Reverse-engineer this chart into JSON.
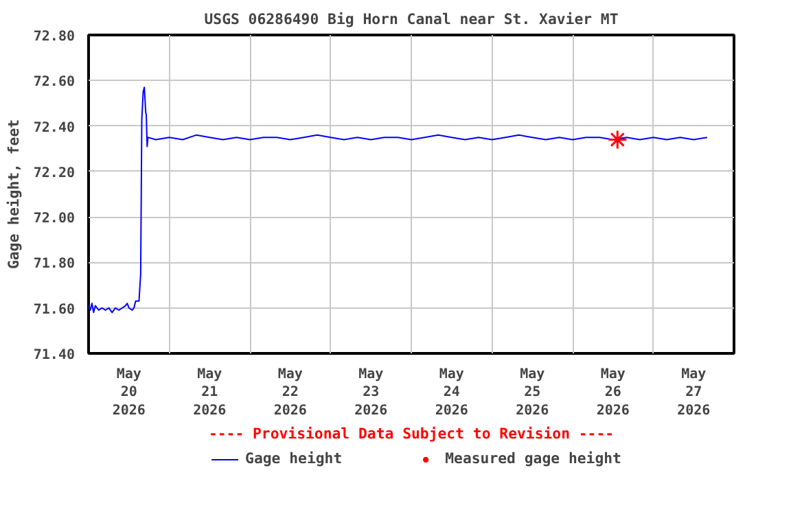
{
  "chart_data": {
    "type": "line",
    "title": "USGS 06286490 Big Horn Canal near St. Xavier MT",
    "ylabel": "Gage height, feet",
    "xlim": [
      "2026-05-20T00:00",
      "2026-05-28T00:00"
    ],
    "xticks": [
      {
        "value": "2026-05-20T12:00",
        "label": "May\n20\n2026"
      },
      {
        "value": "2026-05-21T00:00",
        "label": null
      },
      {
        "value": "2026-05-21T12:00",
        "label": "May\n21\n2026"
      },
      {
        "value": "2026-05-22T00:00",
        "label": null
      },
      {
        "value": "2026-05-22T12:00",
        "label": "May\n22\n2026"
      },
      {
        "value": "2026-05-23T00:00",
        "label": null
      },
      {
        "value": "2026-05-23T12:00",
        "label": "May\n23\n2026"
      },
      {
        "value": "2026-05-24T00:00",
        "label": null
      },
      {
        "value": "2026-05-24T12:00",
        "label": "May\n24\n2026"
      },
      {
        "value": "2026-05-25T00:00",
        "label": null
      },
      {
        "value": "2026-05-25T12:00",
        "label": "May\n25\n2026"
      },
      {
        "value": "2026-05-26T00:00",
        "label": null
      },
      {
        "value": "2026-05-26T12:00",
        "label": "May\n26\n2026"
      },
      {
        "value": "2026-05-27T00:00",
        "label": null
      },
      {
        "value": "2026-05-27T12:00",
        "label": "May\n27\n2026"
      }
    ],
    "ylim": [
      71.4,
      72.8
    ],
    "yticks": [
      {
        "value": 71.4,
        "label": "71.40"
      },
      {
        "value": 71.6,
        "label": "71.60"
      },
      {
        "value": 71.8,
        "label": "71.80"
      },
      {
        "value": 72.0,
        "label": "72.00"
      },
      {
        "value": 72.2,
        "label": "72.20"
      },
      {
        "value": 72.4,
        "label": "72.40"
      },
      {
        "value": 72.6,
        "label": "72.60"
      },
      {
        "value": 72.8,
        "label": "72.80"
      }
    ],
    "grid": true,
    "legend": "bottom",
    "annotations": [
      "---- Provisional Data Subject to Revision ----"
    ],
    "series": [
      {
        "name": "Gage height",
        "color": "#0000ff",
        "line_style": "solid",
        "marker": "none",
        "x": [
          "2026-05-20T00:00",
          "2026-05-20T00:30",
          "2026-05-20T01:00",
          "2026-05-20T01:30",
          "2026-05-20T02:00",
          "2026-05-20T03:00",
          "2026-05-20T04:00",
          "2026-05-20T05:00",
          "2026-05-20T06:00",
          "2026-05-20T07:00",
          "2026-05-20T08:00",
          "2026-05-20T09:00",
          "2026-05-20T10:00",
          "2026-05-20T11:00",
          "2026-05-20T11:30",
          "2026-05-20T12:00",
          "2026-05-20T13:00",
          "2026-05-20T13:30",
          "2026-05-20T14:00",
          "2026-05-20T15:00",
          "2026-05-20T15:30",
          "2026-05-20T15:50",
          "2026-05-20T16:15",
          "2026-05-20T16:35",
          "2026-05-20T17:00",
          "2026-05-20T17:10",
          "2026-05-20T17:25",
          "2026-05-20T17:40",
          "2026-05-20T20:00",
          "2026-05-21T00:00",
          "2026-05-21T04:00",
          "2026-05-21T08:00",
          "2026-05-21T12:00",
          "2026-05-21T16:00",
          "2026-05-21T20:00",
          "2026-05-22T00:00",
          "2026-05-22T04:00",
          "2026-05-22T08:00",
          "2026-05-22T12:00",
          "2026-05-22T16:00",
          "2026-05-22T20:00",
          "2026-05-23T00:00",
          "2026-05-23T04:00",
          "2026-05-23T08:00",
          "2026-05-23T12:00",
          "2026-05-23T16:00",
          "2026-05-23T20:00",
          "2026-05-24T00:00",
          "2026-05-24T04:00",
          "2026-05-24T08:00",
          "2026-05-24T12:00",
          "2026-05-24T16:00",
          "2026-05-24T20:00",
          "2026-05-25T00:00",
          "2026-05-25T04:00",
          "2026-05-25T08:00",
          "2026-05-25T12:00",
          "2026-05-25T16:00",
          "2026-05-25T20:00",
          "2026-05-26T00:00",
          "2026-05-26T04:00",
          "2026-05-26T08:00",
          "2026-05-26T12:00",
          "2026-05-26T16:00",
          "2026-05-26T20:00",
          "2026-05-27T00:00",
          "2026-05-27T04:00",
          "2026-05-27T08:00",
          "2026-05-27T12:00",
          "2026-05-27T16:00"
        ],
        "values": [
          71.61,
          71.59,
          71.62,
          71.58,
          71.61,
          71.59,
          71.6,
          71.59,
          71.6,
          71.58,
          71.6,
          71.59,
          71.6,
          71.61,
          71.62,
          71.6,
          71.59,
          71.6,
          71.63,
          71.63,
          71.75,
          72.43,
          72.55,
          72.57,
          72.46,
          72.45,
          72.31,
          72.35,
          72.34,
          72.35,
          72.34,
          72.36,
          72.35,
          72.34,
          72.35,
          72.34,
          72.35,
          72.35,
          72.34,
          72.35,
          72.36,
          72.35,
          72.34,
          72.35,
          72.34,
          72.35,
          72.35,
          72.34,
          72.35,
          72.36,
          72.35,
          72.34,
          72.35,
          72.34,
          72.35,
          72.36,
          72.35,
          72.34,
          72.35,
          72.34,
          72.35,
          72.35,
          72.34,
          72.35,
          72.34,
          72.35,
          72.34,
          72.35,
          72.34,
          72.35
        ]
      },
      {
        "name": "Measured gage height",
        "type": "scatter",
        "color": "#ff0000",
        "marker": "cross",
        "x": [
          "2026-05-26T13:20"
        ],
        "values": [
          72.34
        ]
      }
    ]
  }
}
